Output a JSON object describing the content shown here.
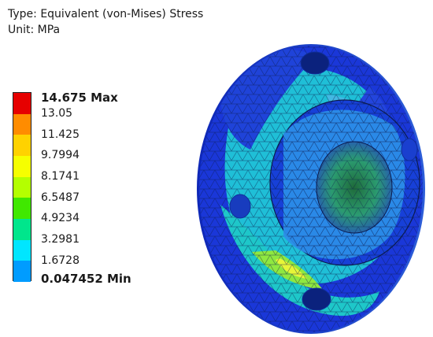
{
  "header": {
    "type_line": "Type: Equivalent (von-Mises) Stress",
    "unit_line": "Unit: MPa"
  },
  "legend": {
    "labels": [
      "14.675 Max",
      "13.05",
      "11.425",
      "9.7994",
      "8.1741",
      "6.5487",
      "4.9234",
      "3.2981",
      "1.6728",
      "0.047452 Min"
    ],
    "colors": [
      "#e60000",
      "#ff8c00",
      "#ffd200",
      "#f6ff00",
      "#b4ff00",
      "#40e800",
      "#00e68c",
      "#00e6ff",
      "#009cff",
      "#0000e6"
    ]
  }
}
